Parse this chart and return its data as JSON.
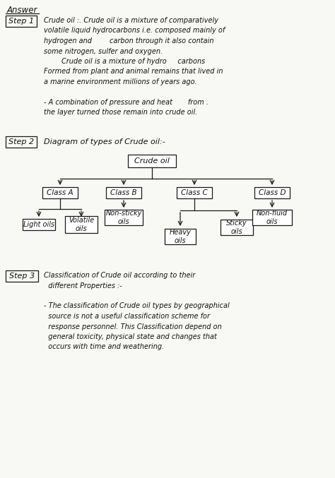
{
  "bg_color": "#f8f8f5",
  "step1_label": "Step 1",
  "step1_text": [
    "Crude oil :. Crude oil is a mixture of comparatively",
    "volatile liquid hydrocarbons i.e. composed mainly of",
    "hydrogen and        carbon through it also contain",
    "some nitrogen, sulfer and oxygen.",
    "        Crude oil is a mixture of hydro     carbons",
    "Formed from plant and animal remains that lived in",
    "a marine environment millions of years ago.",
    "",
    "- A combination of pressure and heat       from .",
    "the layer turned those remain into crude oil."
  ],
  "step2_label": "Step 2",
  "step2_text": "Diagram of types of Crude oil:-",
  "step3_label": "Step 3",
  "step3_text": [
    "Classification of Crude oil according to their",
    "  different Properties :-",
    "",
    "- The classification of Crude oil types by geographical",
    "  source is not a useful classification scheme for",
    "  response personnel. This Classification depend on",
    "  general toxicity, physical state and changes that",
    "  occurs with time and weathering."
  ],
  "diagram_root": "Crude oil",
  "diagram_l1": [
    "Class A",
    "Class B",
    "Class C",
    "Class D"
  ],
  "classA_children": [
    "Light oils",
    "Volatile\noils"
  ],
  "classB_children": [
    "Non-sticky\noils"
  ],
  "classC_children": [
    "Heavy\noils",
    "Sticky\noils"
  ],
  "classD_children": [
    "Non-fluid\noils"
  ],
  "line_color": "#1a1a1a",
  "text_color": "#111111",
  "box_edge": "#1a1a1a"
}
